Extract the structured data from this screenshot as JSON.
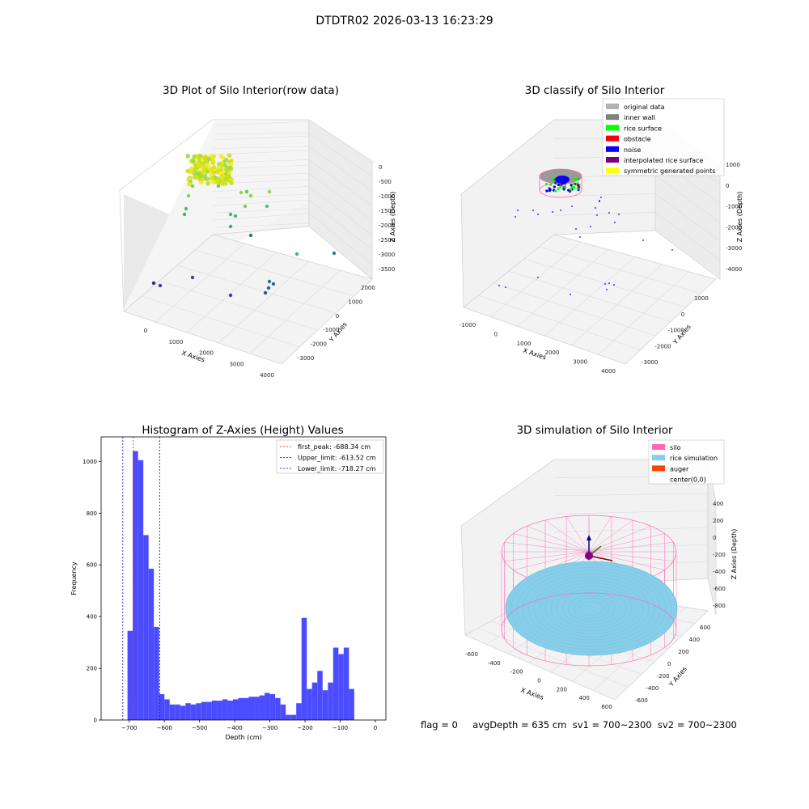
{
  "suptitle": "DTDTR02 2026-03-13 16:23:29",
  "footer": "flag = 0     avgDepth = 635 cm  sv1 = 700~2300  sv2 = 700~2300",
  "chart_data": [
    {
      "type": "scatter3d",
      "title": "3D Plot of Silo Interior(row data)",
      "xlabel": "X Axies",
      "ylabel": "Y Axies",
      "zlabel": "Z Axies (Depth)",
      "xticks": [
        "0",
        "1000",
        "2000",
        "3000",
        "4000"
      ],
      "yticks": [
        "2000",
        "1000",
        "0",
        "-1000",
        "-2000",
        "-3000"
      ],
      "zticks": [
        "0",
        "-500",
        "-1000",
        "-1500",
        "-2000",
        "-2500",
        "-3000",
        "-3500"
      ],
      "colormap": "viridis"
    },
    {
      "type": "scatter3d",
      "title": "3D classify of Silo Interior",
      "xlabel": "X Axies",
      "ylabel": "Y Axies",
      "zlabel": "Z Axies (Depth)",
      "xticks": [
        "-1000",
        "0",
        "1000",
        "2000",
        "3000",
        "4000"
      ],
      "yticks": [
        "1000",
        "0",
        "-1000",
        "-2000",
        "-3000"
      ],
      "zticks": [
        "1000",
        "0",
        "-1000",
        "-2000",
        "-3000",
        "-4000"
      ],
      "legend_position": "top-right",
      "legend": [
        {
          "label": "original data",
          "color": "#b3b3b3"
        },
        {
          "label": "inner wall",
          "color": "#808080"
        },
        {
          "label": "rice surface",
          "color": "#00ff00"
        },
        {
          "label": "obstacle",
          "color": "#ff0000"
        },
        {
          "label": "noise",
          "color": "#0000ff"
        },
        {
          "label": "interpolated rice surface",
          "color": "#800080"
        },
        {
          "label": "symmetric generated points",
          "color": "#ffff00"
        }
      ]
    },
    {
      "type": "bar",
      "title": "Histogram of Z-Axies (Height) Values",
      "xlabel": "Depth (cm)",
      "ylabel": "Frequency",
      "xlim": [
        -780,
        30
      ],
      "ylim": [
        0,
        1095
      ],
      "xticks": [
        -700,
        -600,
        -500,
        -400,
        -300,
        -200,
        -100,
        0
      ],
      "yticks": [
        0,
        200,
        400,
        600,
        800,
        1000
      ],
      "bar_color": "#4c4cff",
      "bin_start": -705,
      "bin_width": 15,
      "values": [
        345,
        1040,
        1005,
        715,
        585,
        360,
        100,
        80,
        60,
        60,
        55,
        65,
        60,
        65,
        70,
        70,
        75,
        75,
        80,
        75,
        80,
        85,
        85,
        90,
        90,
        95,
        105,
        100,
        85,
        60,
        20,
        20,
        65,
        395,
        120,
        145,
        190,
        115,
        145,
        280,
        255,
        280,
        120
      ],
      "lines": [
        {
          "label": "first_peak: -688.34 cm",
          "value": -688.34,
          "color": "#ff0000"
        },
        {
          "label": "Upper_limit: -613.52 cm",
          "value": -613.52,
          "color": "#0000bb"
        },
        {
          "label": "Lower_limit: -718.27 cm",
          "value": -718.27,
          "color": "#0000bb"
        }
      ],
      "legend_position": "top-right"
    },
    {
      "type": "surface3d",
      "title": "3D simulation of Silo Interior",
      "xlabel": "X Axies",
      "ylabel": "Y Axies",
      "zlabel": "Z Axies (Depth)",
      "xticks": [
        "-600",
        "-400",
        "-200",
        "0",
        "200",
        "400",
        "600"
      ],
      "yticks": [
        "600",
        "400",
        "200",
        "0",
        "-200",
        "-400",
        "-600"
      ],
      "zticks": [
        "400",
        "200",
        "0",
        "-200",
        "-400",
        "-600",
        "-800"
      ],
      "legend_position": "top-right",
      "legend": [
        {
          "label": "silo",
          "color": "#ff69b4"
        },
        {
          "label": "rice simulation",
          "color": "#87ceeb"
        },
        {
          "label": "auger",
          "color": "#ff4500"
        },
        {
          "label": "center(0,0)",
          "color": ""
        }
      ]
    }
  ]
}
